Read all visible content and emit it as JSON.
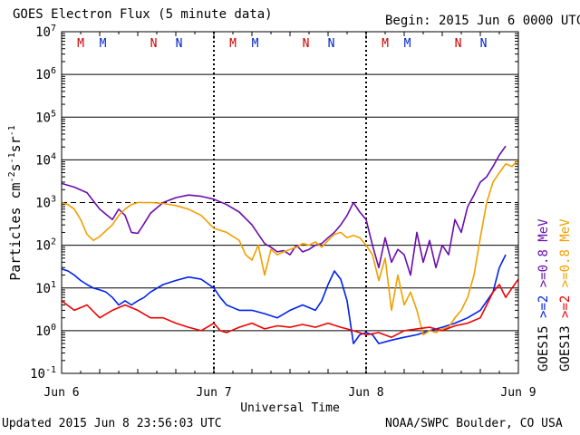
{
  "header": {
    "title": "GOES Electron Flux (5 minute data)",
    "begin": "Begin: 2015 Jun 6 0000 UTC"
  },
  "footer": {
    "updated": "Updated 2015 Jun  8 23:56:03 UTC",
    "credit": "NOAA/SWPC Boulder, CO USA"
  },
  "colors": {
    "goes15_ge08": "#6a0dad",
    "goes15_ge2": "#0022ee",
    "goes13_ge08": "#f0a000",
    "goes13_ge2": "#ee0000",
    "marker_M": "#cc0000",
    "marker_N": "#cc0000",
    "marker_M2": "#0022cc",
    "marker_N2": "#0022cc"
  },
  "chart_data": {
    "type": "line",
    "title": "GOES Electron Flux (5 minute data)",
    "xlabel": "Universal Time",
    "ylabel": "Particles cm^-2 s^-1 sr^-1",
    "yscale": "log",
    "ylim": [
      0.1,
      10000000
    ],
    "xlim": [
      0,
      72
    ],
    "x_unit": "hours since 2015 Jun 6 0000 UTC",
    "x_ticks": [
      {
        "x": 0,
        "label": "Jun 6"
      },
      {
        "x": 24,
        "label": "Jun 7"
      },
      {
        "x": 48,
        "label": "Jun 8"
      },
      {
        "x": 72,
        "label": "Jun 9"
      }
    ],
    "y_ticks": [
      {
        "v": 0.1,
        "base": "10",
        "exp": "-1"
      },
      {
        "v": 1,
        "base": "10",
        "exp": "0"
      },
      {
        "v": 10,
        "base": "10",
        "exp": "1"
      },
      {
        "v": 100,
        "base": "10",
        "exp": "2"
      },
      {
        "v": 1000,
        "base": "10",
        "exp": "3"
      },
      {
        "v": 10000,
        "base": "10",
        "exp": "4"
      },
      {
        "v": 100000,
        "base": "10",
        "exp": "5"
      },
      {
        "v": 1000000,
        "base": "10",
        "exp": "6"
      },
      {
        "v": 10000000,
        "base": "10",
        "exp": "7"
      }
    ],
    "grid": "horizontal at each decade",
    "threshold_dashed": 1000,
    "markers": [
      {
        "x": 3.0,
        "label": "M",
        "sat": "GOES13"
      },
      {
        "x": 6.5,
        "label": "M",
        "sat": "GOES15"
      },
      {
        "x": 14.5,
        "label": "N",
        "sat": "GOES13"
      },
      {
        "x": 18.5,
        "label": "N",
        "sat": "GOES15"
      },
      {
        "x": 27.0,
        "label": "M",
        "sat": "GOES13"
      },
      {
        "x": 30.5,
        "label": "M",
        "sat": "GOES15"
      },
      {
        "x": 38.5,
        "label": "N",
        "sat": "GOES13"
      },
      {
        "x": 42.5,
        "label": "N",
        "sat": "GOES15"
      },
      {
        "x": 51.0,
        "label": "M",
        "sat": "GOES13"
      },
      {
        "x": 54.5,
        "label": "M",
        "sat": "GOES15"
      },
      {
        "x": 62.5,
        "label": "N",
        "sat": "GOES13"
      },
      {
        "x": 66.5,
        "label": "N",
        "sat": "GOES15"
      }
    ],
    "legend": [
      {
        "prefix": "GOES15",
        "items": [
          {
            "name": ">=2",
            "color": "#0022ee"
          },
          {
            "name": ">=0.8 MeV",
            "color": "#6a0dad"
          }
        ]
      },
      {
        "prefix": "GOES13",
        "items": [
          {
            "name": ">=2",
            "color": "#ee0000"
          },
          {
            "name": ">=0.8 MeV",
            "color": "#f0a000"
          }
        ]
      }
    ],
    "series": [
      {
        "name": "GOES15 >=0.8 MeV",
        "color": "#6a0dad",
        "x": [
          0,
          2,
          4,
          6,
          8,
          9,
          10,
          11,
          12,
          13,
          14,
          16,
          18,
          20,
          22,
          24,
          26,
          28,
          30,
          32,
          33,
          34,
          35,
          36,
          37,
          38,
          39,
          40,
          41,
          42,
          43,
          44,
          45,
          46,
          47,
          48,
          49,
          50,
          51,
          52,
          53,
          54,
          55,
          56,
          57,
          58,
          59,
          60,
          61,
          62,
          63,
          64,
          65,
          66,
          67,
          68,
          69,
          70
        ],
        "y": [
          2800,
          2300,
          1700,
          700,
          400,
          700,
          500,
          200,
          190,
          320,
          560,
          1000,
          1300,
          1500,
          1400,
          1200,
          900,
          600,
          300,
          110,
          90,
          70,
          75,
          60,
          100,
          70,
          80,
          100,
          110,
          150,
          200,
          300,
          500,
          1000,
          600,
          400,
          100,
          30,
          150,
          40,
          80,
          60,
          20,
          200,
          40,
          130,
          30,
          100,
          60,
          400,
          200,
          800,
          1500,
          3000,
          4000,
          7000,
          13000,
          21000
        ]
      },
      {
        "name": "GOES15 >=2",
        "color": "#0022ee",
        "x": [
          0,
          1,
          2,
          3,
          4,
          5,
          6,
          7,
          8,
          9,
          10,
          11,
          12,
          13,
          14,
          16,
          18,
          20,
          22,
          24,
          25,
          26,
          28,
          30,
          32,
          34,
          36,
          38,
          40,
          41,
          42,
          43,
          44,
          45,
          46,
          47,
          48,
          49,
          50,
          52,
          54,
          56,
          58,
          60,
          62,
          64,
          66,
          68,
          69,
          70
        ],
        "y": [
          28,
          25,
          20,
          15,
          12,
          10,
          9,
          8,
          6,
          4,
          5,
          4,
          5,
          6,
          8,
          12,
          15,
          18,
          16,
          10,
          6,
          4,
          3,
          3,
          2.5,
          2,
          3,
          4,
          3,
          5,
          12,
          25,
          16,
          5,
          0.5,
          0.8,
          0.9,
          0.8,
          0.5,
          0.6,
          0.7,
          0.8,
          1,
          1.2,
          1.5,
          2,
          3,
          8,
          30,
          60
        ]
      },
      {
        "name": "GOES13 >=0.8 MeV",
        "color": "#f0a000",
        "x": [
          0,
          1,
          2,
          3,
          4,
          5,
          6,
          7,
          8,
          9,
          10,
          11,
          12,
          14,
          16,
          18,
          20,
          22,
          24,
          26,
          28,
          29,
          30,
          31,
          32,
          33,
          34,
          35,
          36,
          37,
          38,
          39,
          40,
          41,
          42,
          43,
          44,
          45,
          46,
          47,
          48,
          49,
          50,
          51,
          52,
          53,
          54,
          55,
          56,
          57,
          58,
          59,
          60,
          61,
          62,
          63,
          64,
          65,
          66,
          67,
          68,
          69,
          70,
          71,
          72
        ],
        "y": [
          1000,
          900,
          700,
          400,
          180,
          130,
          160,
          220,
          300,
          500,
          700,
          900,
          1000,
          1000,
          950,
          850,
          700,
          500,
          250,
          200,
          130,
          60,
          45,
          100,
          20,
          80,
          60,
          70,
          80,
          90,
          110,
          100,
          120,
          90,
          130,
          180,
          200,
          150,
          170,
          150,
          100,
          60,
          15,
          50,
          3,
          20,
          4,
          8,
          3,
          0.8,
          1,
          0.9,
          1.1,
          1.2,
          2,
          3,
          6,
          20,
          150,
          1000,
          3000,
          5000,
          8000,
          7000,
          10000
        ]
      },
      {
        "name": "GOES13 >=2",
        "color": "#ee0000",
        "x": [
          0,
          2,
          4,
          6,
          8,
          10,
          12,
          14,
          16,
          18,
          20,
          22,
          24,
          25,
          26,
          28,
          30,
          32,
          34,
          36,
          38,
          40,
          42,
          44,
          46,
          48,
          50,
          52,
          54,
          56,
          58,
          60,
          62,
          64,
          66,
          67,
          68,
          69,
          70,
          71,
          72
        ],
        "y": [
          5,
          3,
          4,
          2,
          3,
          4,
          3,
          2,
          2,
          1.5,
          1.2,
          1,
          1.5,
          1,
          0.9,
          1.2,
          1.5,
          1.1,
          1.3,
          1.2,
          1.4,
          1.2,
          1.5,
          1.2,
          1,
          0.8,
          0.9,
          0.7,
          1,
          1.1,
          1.2,
          1,
          1.3,
          1.5,
          2,
          4,
          8,
          12,
          6,
          10,
          16
        ]
      }
    ]
  }
}
